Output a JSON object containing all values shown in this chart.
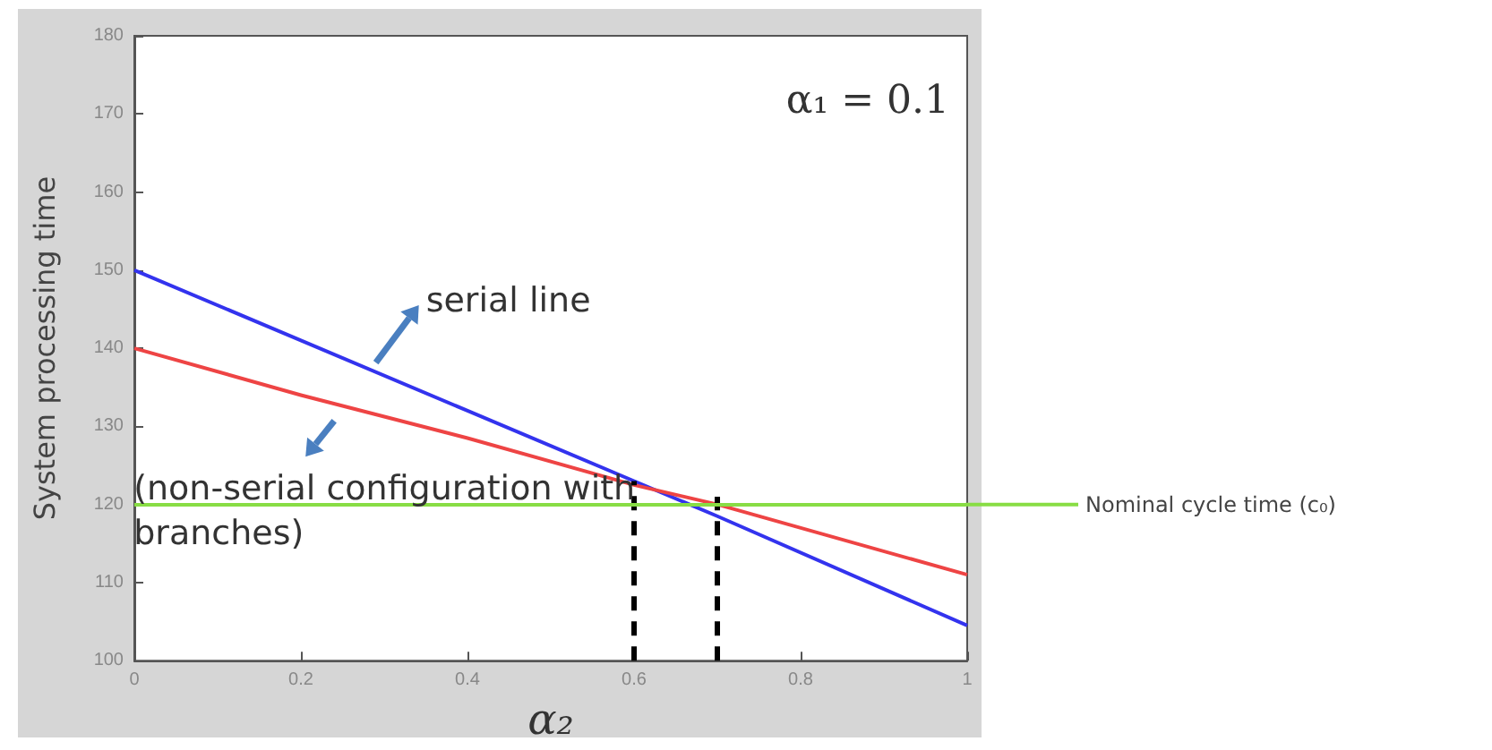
{
  "chart_data": {
    "type": "line",
    "xlabel": "α₂",
    "ylabel": "System processing time",
    "xlim": [
      0,
      1
    ],
    "xticks": [
      0,
      0.2,
      0.4,
      0.6,
      0.8,
      1
    ],
    "ylim": [
      100,
      180
    ],
    "yticks": [
      100,
      110,
      120,
      130,
      140,
      150,
      160,
      170,
      180
    ],
    "grid": false,
    "marker": "none",
    "line_style": "solid",
    "series": [
      {
        "color": "#3333ee",
        "x": [
          0,
          0.2,
          0.4,
          0.6,
          0.7,
          1
        ],
        "values": [
          150,
          141,
          132,
          123,
          118.5,
          104.5
        ]
      },
      {
        "color": "#ee4444",
        "x": [
          0,
          0.2,
          0.4,
          0.6,
          0.7,
          1
        ],
        "values": [
          140,
          134,
          128.5,
          122.5,
          120,
          111
        ]
      },
      {
        "color": "#000000",
        "x": [
          0.6,
          0.6
        ],
        "values": [
          100,
          123
        ],
        "line_style": "dashed"
      },
      {
        "color": "#000000",
        "x": [
          0.7,
          0.7
        ],
        "values": [
          100,
          121
        ],
        "line_style": "dashed"
      }
    ],
    "ref_lines": [
      {
        "axis": "y",
        "value": 120,
        "label": "Nominal cycle time (c₀)",
        "color": "#88dd44"
      }
    ],
    "annotations": [
      "α₁ = 0.1",
      {
        "text": "serial line",
        "x": 0.29,
        "y": 136.8
      },
      {
        "text": "(non-serial configuration with branches)",
        "x": 0.24,
        "y": 133
      }
    ]
  }
}
